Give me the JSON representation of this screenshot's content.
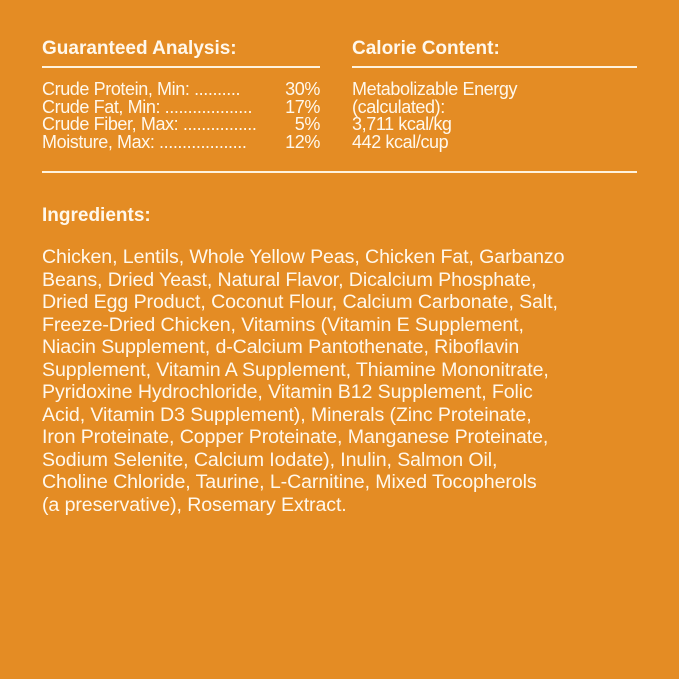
{
  "guaranteed_analysis": {
    "heading": "Guaranteed Analysis:",
    "rows": [
      {
        "label": "Crude Protein, Min: ..........",
        "value": "30%"
      },
      {
        "label": "Crude Fat, Min: ...................",
        "value": "17%"
      },
      {
        "label": "Crude Fiber, Max: ................",
        "value": "5%"
      },
      {
        "label": "Moisture, Max: ...................",
        "value": "12%"
      }
    ]
  },
  "calorie_content": {
    "heading": "Calorie Content:",
    "lines": [
      "Metabolizable Energy",
      "(calculated):",
      "3,711 kcal/kg",
      "442 kcal/cup"
    ]
  },
  "ingredients": {
    "heading": "Ingredients:",
    "lines": [
      "Chicken, Lentils, Whole Yellow Peas, Chicken Fat, Garbanzo",
      "Beans, Dried Yeast, Natural Flavor, Dicalcium Phosphate,",
      "Dried Egg Product, Coconut Flour, Calcium Carbonate, Salt,",
      "Freeze-Dried Chicken, Vitamins (Vitamin E Supplement,",
      "Niacin Supplement, d-Calcium Pantothenate, Riboflavin",
      "Supplement, Vitamin A Supplement, Thiamine Mononitrate,",
      "Pyridoxine Hydrochloride, Vitamin B12 Supplement, Folic",
      "Acid, Vitamin D3 Supplement), Minerals (Zinc Proteinate,",
      "Iron Proteinate, Copper Proteinate, Manganese Proteinate,",
      "Sodium Selenite, Calcium Iodate), Inulin, Salmon Oil,",
      "Choline Chloride, Taurine, L-Carnitine, Mixed Tocopherols",
      "(a preservative), Rosemary Extract."
    ]
  },
  "colors": {
    "background": "#E48C24",
    "text": "#FFF8EC"
  }
}
